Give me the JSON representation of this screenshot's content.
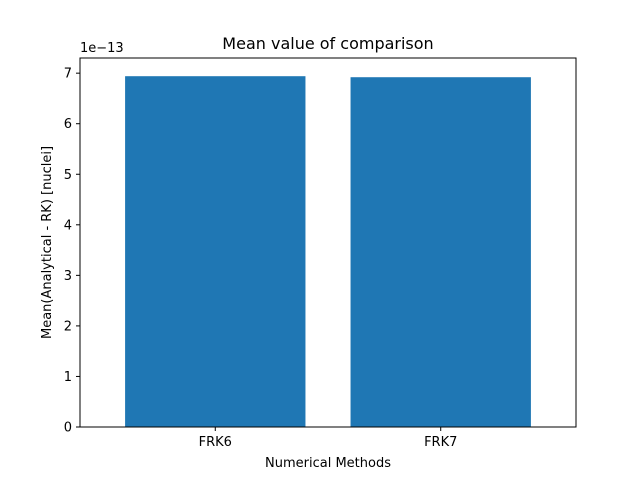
{
  "chart_data": {
    "type": "bar",
    "title": "Mean value of comparison",
    "xlabel": "Numerical Methods",
    "ylabel": "Mean(Analytical - RK) [nuclei]",
    "categories": [
      "FRK6",
      "FRK7"
    ],
    "values": [
      6.94e-13,
      6.92e-13
    ],
    "y_offset_label": "1e−13",
    "y_tick_labels": [
      "0",
      "1",
      "2",
      "3",
      "4",
      "5",
      "6",
      "7"
    ],
    "ylim": [
      0,
      7.3e-13
    ],
    "grid": false,
    "bar_color": "#1f77b4"
  }
}
